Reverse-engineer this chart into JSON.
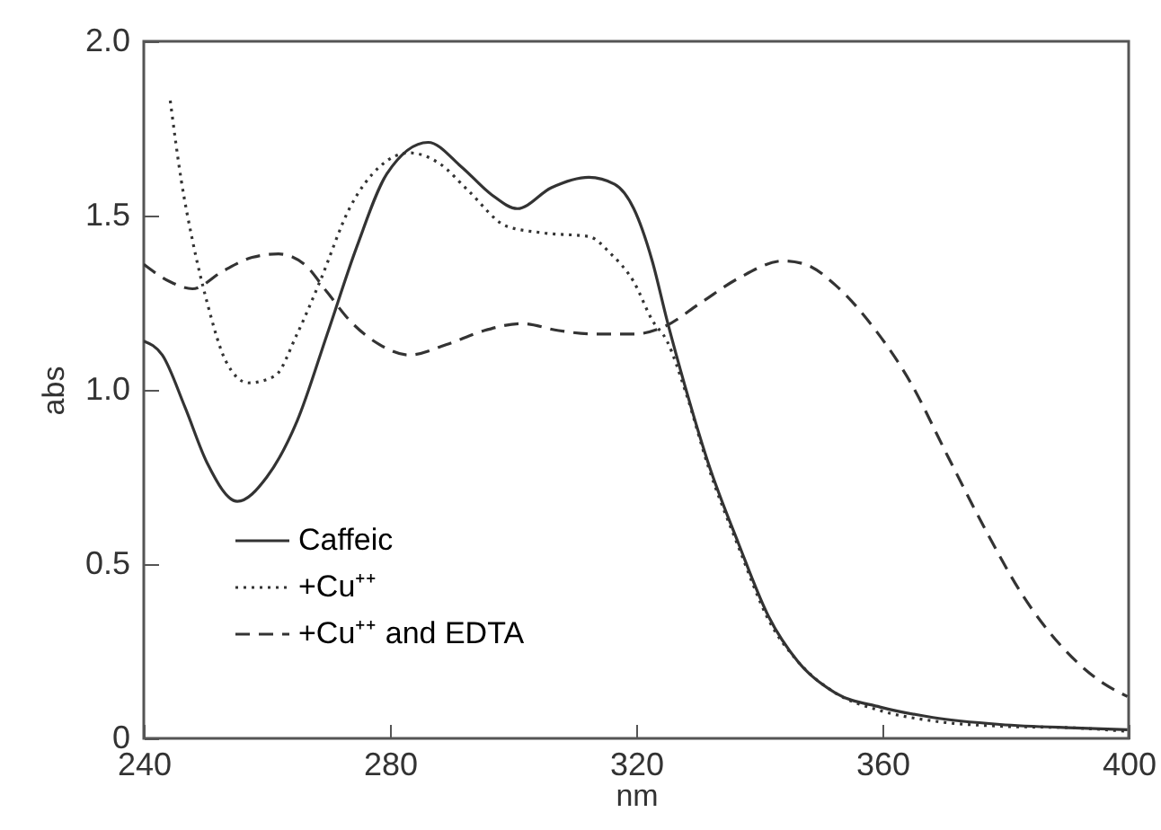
{
  "chart_data": {
    "type": "line",
    "xlabel": "nm",
    "ylabel": "abs",
    "xlim": [
      240,
      400
    ],
    "xticks": [
      240,
      280,
      320,
      360,
      400
    ],
    "ylim": [
      0,
      2
    ],
    "yticks": [
      0,
      0.5,
      {
        "value": 1,
        "label": "1.0"
      },
      1.5,
      {
        "value": 2,
        "label": "2.0"
      }
    ],
    "grid": false,
    "legend": "bottom left",
    "series": [
      {
        "name": "Caffeic",
        "color": "#333333",
        "line_style": "solid",
        "x": [
          240,
          243,
          246.7,
          250.3,
          255.2,
          260,
          264.9,
          269.8,
          274.6,
          279.5,
          286.2,
          291.6,
          296.5,
          300.7,
          306.2,
          312.3,
          316.5,
          319.6,
          322.6,
          325,
          328.1,
          331.7,
          336.6,
          341.5,
          346.3,
          352.4,
          359.6,
          368.2,
          379.1,
          391.3,
          399.8
        ],
        "values": [
          1.14,
          1.1,
          0.95,
          0.79,
          0.68,
          0.75,
          0.91,
          1.16,
          1.41,
          1.62,
          1.71,
          1.64,
          1.56,
          1.52,
          1.58,
          1.61,
          1.59,
          1.52,
          1.37,
          1.2,
          1,
          0.79,
          0.56,
          0.35,
          0.22,
          0.13,
          0.09,
          0.06,
          0.04,
          0.03,
          0.025
        ]
      },
      {
        "name": "+Cu⁺⁺",
        "color": "#333333",
        "line_style": "dotted",
        "x": [
          244.3,
          246.1,
          247.9,
          250.3,
          253.4,
          257,
          261.3,
          264.9,
          268.6,
          273.4,
          278.3,
          283.1,
          288,
          292.8,
          298.9,
          305,
          312.3,
          315.9,
          319.6,
          322.6,
          325,
          328.1,
          331.7,
          336.6,
          341.5,
          346.3,
          352.4,
          359.6,
          368.2,
          379.1,
          391.3,
          399.8
        ],
        "values": [
          1.83,
          1.6,
          1.43,
          1.25,
          1.08,
          1.02,
          1.04,
          1.16,
          1.31,
          1.52,
          1.64,
          1.68,
          1.65,
          1.57,
          1.47,
          1.45,
          1.44,
          1.39,
          1.31,
          1.2,
          1.14,
          0.99,
          0.78,
          0.55,
          0.34,
          0.22,
          0.13,
          0.08,
          0.05,
          0.035,
          0.03,
          0.02
        ]
      },
      {
        "name": "+Cu⁺⁺ and EDTA",
        "color": "#333333",
        "line_style": "dashed",
        "x": [
          240,
          244.3,
          247.9,
          252.8,
          257.6,
          261.9,
          266.1,
          269.8,
          273.4,
          278.3,
          283.1,
          289.2,
          295.3,
          301.4,
          307.4,
          313.5,
          319.6,
          324.4,
          330.5,
          336.6,
          343.9,
          347.5,
          352.4,
          358.5,
          364.6,
          370.6,
          376.7,
          382.8,
          388.8,
          394.9,
          399.8
        ],
        "values": [
          1.36,
          1.31,
          1.29,
          1.34,
          1.38,
          1.39,
          1.36,
          1.28,
          1.2,
          1.13,
          1.1,
          1.13,
          1.17,
          1.19,
          1.17,
          1.16,
          1.16,
          1.18,
          1.25,
          1.32,
          1.37,
          1.36,
          1.3,
          1.18,
          1.02,
          0.81,
          0.6,
          0.41,
          0.27,
          0.17,
          0.12
        ]
      }
    ]
  }
}
